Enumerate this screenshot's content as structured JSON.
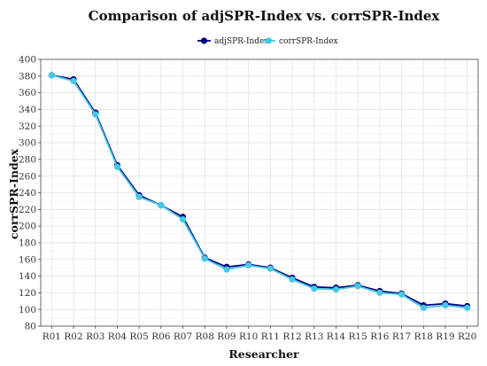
{
  "colors": {
    "adj": "#000080",
    "corr": "#45c8e6"
  },
  "chart_data": {
    "type": "line",
    "title": "Comparison of adjSPR-Index vs. corrSPR-Index",
    "xlabel": "Researcher",
    "ylabel": "corrSPR-Index",
    "categories": [
      "R01",
      "R02",
      "R03",
      "R04",
      "R05",
      "R06",
      "R07",
      "R08",
      "R09",
      "R10",
      "R11",
      "R12",
      "R13",
      "R14",
      "R15",
      "R16",
      "R17",
      "R18",
      "R19",
      "R20"
    ],
    "ylim": [
      80,
      400
    ],
    "yticks": [
      80,
      100,
      120,
      140,
      160,
      180,
      200,
      220,
      240,
      260,
      280,
      300,
      320,
      340,
      360,
      380,
      400
    ],
    "grid": true,
    "legend_position": "top-center",
    "series": [
      {
        "name": "adjSPR-Index",
        "color": "#000080",
        "values": [
          381,
          376,
          336,
          273,
          237,
          225,
          211,
          162,
          151,
          154,
          150,
          138,
          127,
          126,
          129,
          122,
          119,
          105,
          107,
          104
        ]
      },
      {
        "name": "corrSPR-Index",
        "color": "#45c8e6",
        "values": [
          381,
          374,
          334,
          271,
          235,
          225,
          208,
          161,
          148,
          153,
          149,
          136,
          125,
          124,
          128,
          120,
          118,
          102,
          105,
          102
        ]
      }
    ]
  }
}
